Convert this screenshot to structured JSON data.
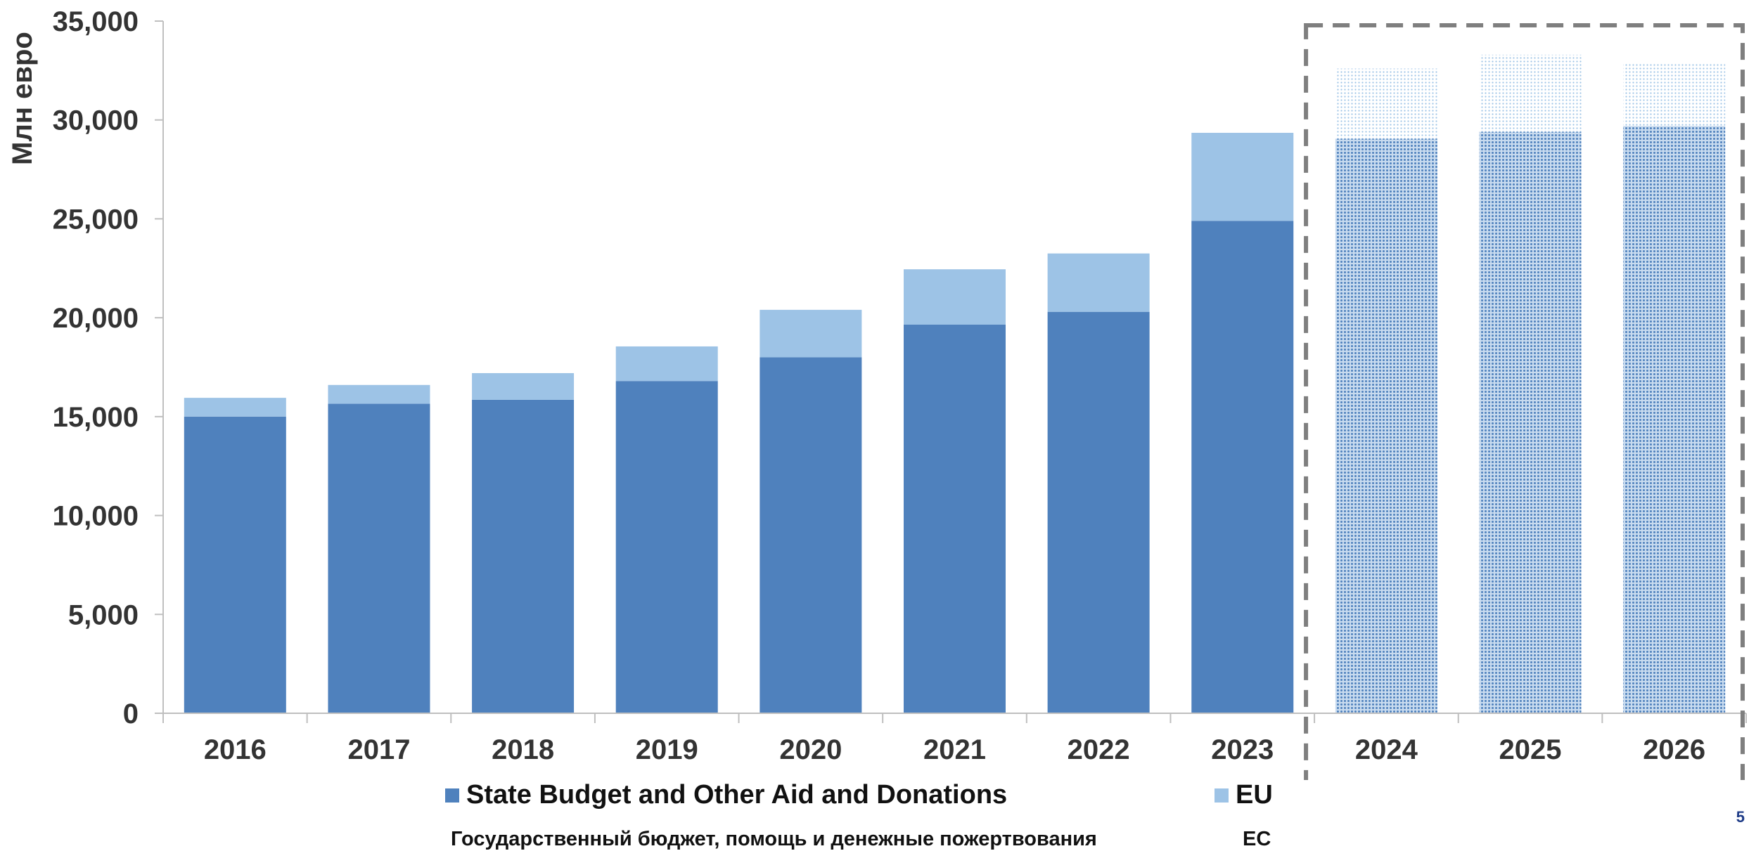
{
  "chart_data": {
    "type": "bar",
    "stacked": true,
    "categories": [
      "2016",
      "2017",
      "2018",
      "2019",
      "2020",
      "2021",
      "2022",
      "2023",
      "2024",
      "2025",
      "2026"
    ],
    "series": [
      {
        "name": "State Budget and Other Aid and Donations",
        "name_ru": "Государственный бюджет, помощь и денежные пожертвования",
        "color": "#4f81bd",
        "values": [
          15000,
          15650,
          15850,
          16800,
          18000,
          19650,
          20300,
          24900,
          29050,
          29400,
          29700
        ]
      },
      {
        "name": "EU",
        "name_ru": "ЕС",
        "color": "#9dc3e6",
        "values": [
          950,
          950,
          1350,
          1750,
          2400,
          2800,
          2950,
          4450,
          3550,
          3900,
          3150
        ]
      }
    ],
    "forecast_categories": [
      "2024",
      "2025",
      "2026"
    ],
    "ylabel": "Млн евро",
    "xlabel": "",
    "ylim": [
      0,
      35000
    ],
    "yticks": [
      "0",
      "5,000",
      "10,000",
      "15,000",
      "20,000",
      "25,000",
      "30,000",
      "35,000"
    ],
    "grid": false,
    "legend_position": "bottom",
    "page_number": "5"
  }
}
